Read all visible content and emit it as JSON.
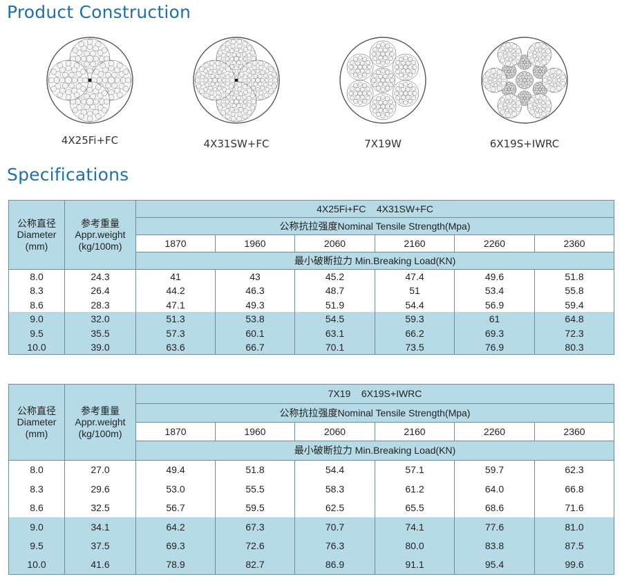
{
  "construction": {
    "title": "Product Construction",
    "ropes": [
      {
        "label": "4X25Fi+FC",
        "icon": "rope-4x25fi-fc-icon"
      },
      {
        "label": "4X31SW+FC",
        "icon": "rope-4x31sw-fc-icon"
      },
      {
        "label": "7X19W",
        "icon": "rope-7x19w-icon"
      },
      {
        "label": "6X19S+IWRC",
        "icon": "rope-6x19s-iwrc-icon"
      }
    ]
  },
  "specifications": {
    "title": "Specifications",
    "tables": [
      {
        "construction_label": "4X25Fi+FC    4X31SW+FC",
        "header": {
          "diameter_cn": "公称直径",
          "diameter_en": "Diameter",
          "diameter_unit": "(mm)",
          "weight_cn": "参考重量",
          "weight_en": "Appr.weight",
          "weight_unit": "(kg/100m)",
          "tensile_label": "公称抗拉强度Nominal Tensile Strength(Mpa)",
          "breaking_label": "最小破断拉力 Min.Breaking Load(KN)"
        },
        "grades": [
          "1870",
          "1960",
          "2060",
          "2160",
          "2260",
          "2360"
        ],
        "rows": [
          [
            "8.0",
            "24.3",
            "41",
            "43",
            "45.2",
            "47.4",
            "49.6",
            "51.8"
          ],
          [
            "8.3",
            "26.4",
            "44.2",
            "46.3",
            "48.7",
            "51",
            "53.4",
            "55.8"
          ],
          [
            "8.6",
            "28.3",
            "47.1",
            "49.3",
            "51.9",
            "54.4",
            "56.9",
            "59.4"
          ],
          [
            "9.0",
            "32.0",
            "51.3",
            "53.8",
            "54.5",
            "59.3",
            "61",
            "64.8"
          ],
          [
            "9.5",
            "35.5",
            "57.3",
            "60.1",
            "63.1",
            "66.2",
            "69.3",
            "72.3"
          ],
          [
            "10.0",
            "39.0",
            "63.6",
            "66.7",
            "70.1",
            "73.5",
            "76.9",
            "80.3"
          ]
        ]
      },
      {
        "construction_label": "7X19    6X19S+IWRC",
        "header": {
          "diameter_cn": "公称直径",
          "diameter_en": "Diameter",
          "diameter_unit": "(mm)",
          "weight_cn": "参考重量",
          "weight_en": "Appr.weight",
          "weight_unit": "(kg/100m)",
          "tensile_label": "公称抗拉强度Nominal Tensile Strength(Mpa)",
          "breaking_label": "最小破断拉力 Min.Breaking Load(KN)"
        },
        "grades": [
          "1870",
          "1960",
          "2060",
          "2160",
          "2260",
          "2360"
        ],
        "rows": [
          [
            "8.0",
            "27.0",
            "49.4",
            "51.8",
            "54.4",
            "57.1",
            "59.7",
            "62.3"
          ],
          [
            "8.3",
            "29.6",
            "53.0",
            "55.5",
            "58.3",
            "61.2",
            "64.0",
            "66.8"
          ],
          [
            "8.6",
            "32.5",
            "56.7",
            "59.5",
            "62.5",
            "65.5",
            "68.6",
            "71.6"
          ],
          [
            "9.0",
            "34.1",
            "64.2",
            "67.3",
            "70.7",
            "74.1",
            "77.6",
            "81.0"
          ],
          [
            "9.5",
            "37.5",
            "69.3",
            "72.6",
            "76.3",
            "80.0",
            "83.8",
            "87.5"
          ],
          [
            "10.0",
            "41.6",
            "78.9",
            "82.7",
            "86.9",
            "91.1",
            "95.4",
            "99.6"
          ]
        ]
      }
    ]
  }
}
